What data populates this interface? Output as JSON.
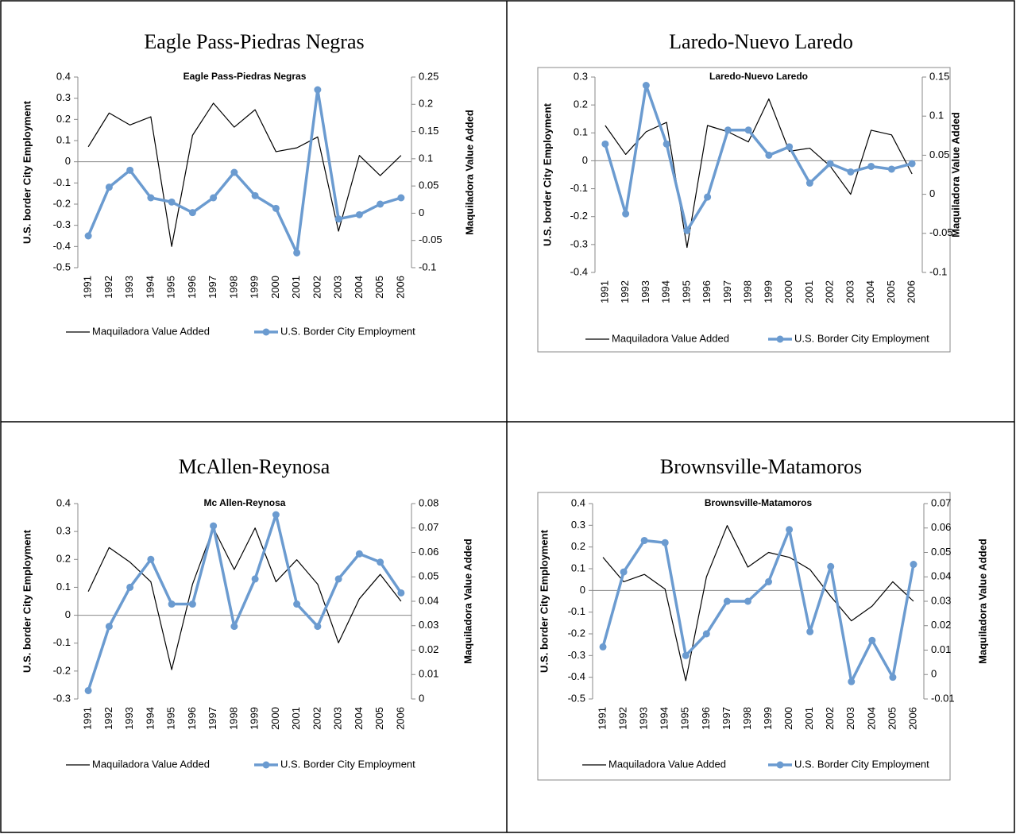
{
  "chart_data": [
    {
      "type": "line",
      "heading": "Eagle Pass-Piedras Negras",
      "title": "Eagle Pass-Piedras Negras",
      "categories": [
        "1991",
        "1992",
        "1993",
        "1994",
        "1995",
        "1996",
        "1997",
        "1998",
        "1999",
        "2000",
        "2001",
        "2002",
        "2003",
        "2004",
        "2005",
        "2006"
      ],
      "series": [
        {
          "name": "Maquiladora Value Added",
          "color": "#000000",
          "axis": "y2",
          "marker": false,
          "values": [
            0.122,
            0.184,
            0.162,
            0.177,
            -0.061,
            0.143,
            0.202,
            0.158,
            0.19,
            0.113,
            0.12,
            0.14,
            -0.033,
            0.106,
            0.069,
            0.106
          ]
        },
        {
          "name": "U.S. Border City Employment",
          "color": "#6b9bd0",
          "axis": "y",
          "marker": true,
          "values": [
            -0.35,
            -0.12,
            -0.04,
            -0.17,
            -0.19,
            -0.24,
            -0.17,
            -0.05,
            -0.16,
            -0.22,
            -0.43,
            0.34,
            -0.27,
            -0.25,
            -0.2,
            -0.17
          ]
        }
      ],
      "ylabel": "U.S. border City Employment",
      "y2label": "Maquiladora Value Added",
      "ylim": [
        -0.5,
        0.4
      ],
      "yticks": [
        -0.5,
        -0.4,
        -0.3,
        -0.2,
        -0.1,
        0,
        0.1,
        0.2,
        0.3,
        0.4
      ],
      "y2lim": [
        -0.1,
        0.25
      ],
      "y2ticks": [
        -0.1,
        -0.05,
        0,
        0.05,
        0.1,
        0.15,
        0.2,
        0.25
      ]
    },
    {
      "type": "line",
      "heading": "Laredo-Nuevo Laredo",
      "title": "Laredo-Nuevo Laredo",
      "categories": [
        "1991",
        "1992",
        "1993",
        "1994",
        "1995",
        "1996",
        "1997",
        "1998",
        "1999",
        "2000",
        "2001",
        "2002",
        "2003",
        "2004",
        "2005",
        "2006"
      ],
      "series": [
        {
          "name": "Maquiladora Value Added",
          "color": "#000000",
          "axis": "y2",
          "marker": false,
          "values": [
            0.088,
            0.051,
            0.08,
            0.092,
            -0.068,
            0.088,
            0.08,
            0.067,
            0.122,
            0.055,
            0.059,
            0.036,
            0.0,
            0.082,
            0.076,
            0.026
          ]
        },
        {
          "name": "U.S. Border City Employment",
          "color": "#6b9bd0",
          "axis": "y",
          "marker": true,
          "values": [
            0.06,
            -0.19,
            0.27,
            0.06,
            -0.25,
            -0.13,
            0.11,
            0.11,
            0.02,
            0.05,
            -0.08,
            -0.01,
            -0.04,
            -0.02,
            -0.03,
            -0.01
          ]
        }
      ],
      "ylabel": "U.S. border City Employment",
      "y2label": "Maquiladora Value Added",
      "ylim": [
        -0.4,
        0.3
      ],
      "yticks": [
        -0.4,
        -0.3,
        -0.2,
        -0.1,
        0,
        0.1,
        0.2,
        0.3
      ],
      "y2lim": [
        -0.1,
        0.15
      ],
      "y2ticks": [
        -0.1,
        -0.05,
        0,
        0.05,
        0.1,
        0.15
      ]
    },
    {
      "type": "line",
      "heading": "McAllen-Reynosa",
      "title": "Mc Allen-Reynosa",
      "categories": [
        "1991",
        "1992",
        "1993",
        "1994",
        "1995",
        "1996",
        "1997",
        "1998",
        "1999",
        "2000",
        "2001",
        "2002",
        "2003",
        "2004",
        "2005",
        "2006"
      ],
      "series": [
        {
          "name": "Maquiladora Value Added",
          "color": "#000000",
          "axis": "y2",
          "marker": false,
          "values": [
            0.044,
            0.062,
            0.056,
            0.048,
            0.012,
            0.047,
            0.07,
            0.053,
            0.07,
            0.048,
            0.057,
            0.047,
            0.023,
            0.041,
            0.051,
            0.04
          ]
        },
        {
          "name": "U.S. Border City Employment",
          "color": "#6b9bd0",
          "axis": "y",
          "marker": true,
          "values": [
            -0.27,
            -0.04,
            0.1,
            0.2,
            0.04,
            0.04,
            0.32,
            -0.04,
            0.13,
            0.36,
            0.04,
            -0.04,
            0.13,
            0.22,
            0.19,
            0.08
          ]
        }
      ],
      "ylabel": "U.S. border City Employment",
      "y2label": "Maquiladora Value Added",
      "ylim": [
        -0.3,
        0.4
      ],
      "yticks": [
        -0.3,
        -0.2,
        -0.1,
        0,
        0.1,
        0.2,
        0.3,
        0.4
      ],
      "y2lim": [
        0,
        0.08
      ],
      "y2ticks": [
        0,
        0.01,
        0.02,
        0.03,
        0.04,
        0.05,
        0.06,
        0.07,
        0.08
      ]
    },
    {
      "type": "line",
      "heading": "Brownsville-Matamoros",
      "title": "Brownsville-Matamoros",
      "categories": [
        "1991",
        "1992",
        "1993",
        "1994",
        "1995",
        "1996",
        "1997",
        "1998",
        "1999",
        "2000",
        "2001",
        "2002",
        "2003",
        "2004",
        "2005",
        "2006"
      ],
      "series": [
        {
          "name": "Maquiladora Value Added",
          "color": "#000000",
          "axis": "y2",
          "marker": false,
          "values": [
            0.048,
            0.038,
            0.041,
            0.035,
            -0.0025,
            0.04,
            0.061,
            0.044,
            0.05,
            0.048,
            0.043,
            0.032,
            0.022,
            0.028,
            0.038,
            0.03
          ]
        },
        {
          "name": "U.S. Border City Employment",
          "color": "#6b9bd0",
          "axis": "y",
          "marker": true,
          "values": [
            -0.26,
            0.085,
            0.23,
            0.22,
            -0.3,
            -0.2,
            -0.05,
            -0.05,
            0.04,
            0.28,
            -0.19,
            0.11,
            -0.42,
            -0.23,
            -0.4,
            0.12
          ]
        }
      ],
      "ylabel": "U.S. border City Employment",
      "y2label": "Maquiladora Value Added",
      "ylim": [
        -0.5,
        0.4
      ],
      "yticks": [
        -0.5,
        -0.4,
        -0.3,
        -0.2,
        -0.1,
        0,
        0.1,
        0.2,
        0.3,
        0.4
      ],
      "y2lim": [
        -0.01,
        0.07
      ],
      "y2ticks": [
        -0.01,
        0,
        0.01,
        0.02,
        0.03,
        0.04,
        0.05,
        0.06,
        0.07
      ]
    }
  ]
}
